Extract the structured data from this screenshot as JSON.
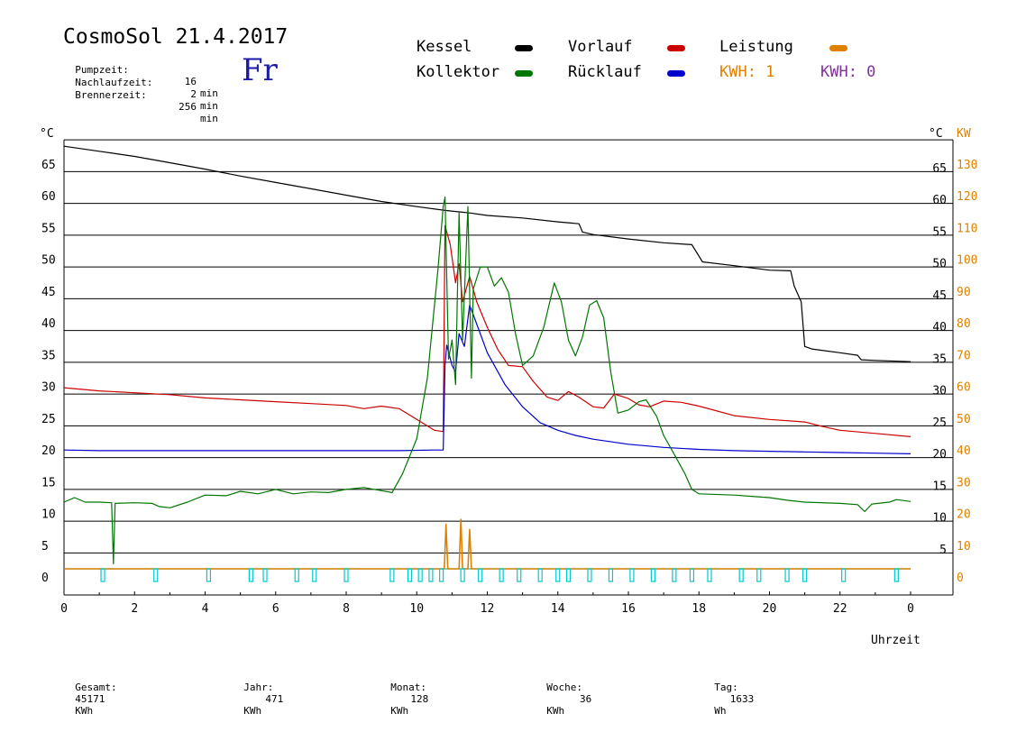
{
  "header": {
    "title": "CosmoSol 21.4.2017",
    "day_label": "Fr",
    "info": [
      {
        "label": "Pumpzeit:",
        "value": "16",
        "unit": "min"
      },
      {
        "label": "Nachlaufzeit:",
        "value": "2",
        "unit": "min"
      },
      {
        "label": "Brennerzeit:",
        "value": "256",
        "unit": "min"
      }
    ]
  },
  "legend": {
    "kessel": "Kessel",
    "vorlauf": "Vorlauf",
    "leistung": "Leistung",
    "kollektor": "Kollektor",
    "ruecklauf": "Rücklauf",
    "kwh1": "KWH: 1",
    "kwh2": "KWH: 0"
  },
  "colors": {
    "kessel": "#000000",
    "vorlauf": "#cc0000",
    "ruecklauf": "#0000cc",
    "kollektor": "#007700",
    "leistung": "#e08000",
    "pump": "#00c8d0",
    "kwh_violet": "#803399",
    "day": "#1a1aa8"
  },
  "footer": [
    {
      "label": "Gesamt:",
      "value": "45171",
      "unit": "KWh"
    },
    {
      "label": "Jahr:",
      "value": "471",
      "unit": "KWh"
    },
    {
      "label": "Monat:",
      "value": "128",
      "unit": "KWh"
    },
    {
      "label": "Woche:",
      "value": "36",
      "unit": "KWh"
    },
    {
      "label": "Tag:",
      "value": "1633",
      "unit": "Wh"
    }
  ],
  "chart_data": {
    "type": "line",
    "xlabel": "Uhrzeit",
    "ylabel_left": "°C",
    "ylabel_right": "°C",
    "ylabel_right2": "KW",
    "xlim": [
      0,
      24
    ],
    "ylim": [
      -2.5,
      66.5
    ],
    "x_ticks": [
      "0",
      "2",
      "4",
      "6",
      "8",
      "10",
      "12",
      "14",
      "16",
      "18",
      "20",
      "22",
      "0"
    ],
    "y_ticks_left": [
      "0",
      "5",
      "10",
      "15",
      "20",
      "25",
      "30",
      "35",
      "40",
      "45",
      "50",
      "55",
      "60",
      "65"
    ],
    "y_ticks_right": [
      "5",
      "10",
      "15",
      "20",
      "25",
      "30",
      "35",
      "40",
      "45",
      "50",
      "55",
      "60",
      "65"
    ],
    "y_ticks_kw": [
      "0",
      "10",
      "20",
      "30",
      "40",
      "50",
      "60",
      "70",
      "80",
      "90",
      "100",
      "110",
      "120",
      "130"
    ],
    "grid": "horizontal",
    "series": [
      {
        "name": "Kessel",
        "key": "kessel",
        "points": [
          [
            0,
            66.5
          ],
          [
            1,
            65.7
          ],
          [
            2,
            64.9
          ],
          [
            3,
            63.9
          ],
          [
            4,
            62.9
          ],
          [
            5,
            61.8
          ],
          [
            6,
            60.8
          ],
          [
            7,
            59.8
          ],
          [
            8,
            58.8
          ],
          [
            9,
            57.8
          ],
          [
            10,
            57.0
          ],
          [
            10.8,
            56.4
          ],
          [
            11.5,
            56.0
          ],
          [
            12,
            55.6
          ],
          [
            13,
            55.2
          ],
          [
            14,
            54.6
          ],
          [
            14.6,
            54.3
          ],
          [
            14.7,
            53.0
          ],
          [
            15,
            52.6
          ],
          [
            16,
            51.9
          ],
          [
            17,
            51.3
          ],
          [
            17.8,
            51.0
          ],
          [
            18.1,
            48.3
          ],
          [
            19,
            47.7
          ],
          [
            20,
            47.0
          ],
          [
            20.6,
            46.9
          ],
          [
            20.7,
            44.5
          ],
          [
            20.9,
            42.0
          ],
          [
            21.0,
            35.0
          ],
          [
            21.2,
            34.6
          ],
          [
            22,
            34.0
          ],
          [
            22.5,
            33.6
          ],
          [
            22.6,
            32.9
          ],
          [
            23,
            32.8
          ],
          [
            24,
            32.6
          ]
        ]
      },
      {
        "name": "Vorlauf",
        "key": "vorlauf",
        "points": [
          [
            0,
            28.5
          ],
          [
            1,
            28.0
          ],
          [
            2,
            27.7
          ],
          [
            3,
            27.4
          ],
          [
            4,
            26.9
          ],
          [
            5,
            26.6
          ],
          [
            6,
            26.3
          ],
          [
            7,
            26.0
          ],
          [
            8,
            25.7
          ],
          [
            8.5,
            25.2
          ],
          [
            9,
            25.6
          ],
          [
            9.5,
            25.2
          ],
          [
            10,
            23.5
          ],
          [
            10.5,
            21.8
          ],
          [
            10.75,
            21.6
          ],
          [
            10.8,
            54.0
          ],
          [
            10.95,
            51.0
          ],
          [
            11.1,
            45.0
          ],
          [
            11.2,
            48.0
          ],
          [
            11.3,
            42.0
          ],
          [
            11.5,
            46.0
          ],
          [
            11.7,
            42.0
          ],
          [
            12,
            38.0
          ],
          [
            12.3,
            34.5
          ],
          [
            12.6,
            32.0
          ],
          [
            13,
            31.8
          ],
          [
            13.3,
            29.5
          ],
          [
            13.7,
            27.0
          ],
          [
            14,
            26.5
          ],
          [
            14.3,
            27.9
          ],
          [
            14.6,
            27.0
          ],
          [
            15,
            25.5
          ],
          [
            15.3,
            25.3
          ],
          [
            15.6,
            27.5
          ],
          [
            16,
            26.8
          ],
          [
            16.3,
            25.8
          ],
          [
            16.6,
            25.5
          ],
          [
            17,
            26.4
          ],
          [
            17.5,
            26.2
          ],
          [
            18,
            25.6
          ],
          [
            19,
            24.1
          ],
          [
            20,
            23.5
          ],
          [
            21,
            23.1
          ],
          [
            21.5,
            22.4
          ],
          [
            22,
            21.8
          ],
          [
            23,
            21.3
          ],
          [
            24,
            20.8
          ]
        ]
      },
      {
        "name": "Rücklauf",
        "key": "ruecklauf",
        "points": [
          [
            0,
            18.7
          ],
          [
            1,
            18.6
          ],
          [
            2,
            18.6
          ],
          [
            4,
            18.6
          ],
          [
            6,
            18.6
          ],
          [
            8,
            18.6
          ],
          [
            9.5,
            18.6
          ],
          [
            10.5,
            18.7
          ],
          [
            10.75,
            18.7
          ],
          [
            10.8,
            32.0
          ],
          [
            10.85,
            35.2
          ],
          [
            11.0,
            32.0
          ],
          [
            11.1,
            31.0
          ],
          [
            11.2,
            37.0
          ],
          [
            11.35,
            35.0
          ],
          [
            11.5,
            41.5
          ],
          [
            11.6,
            40.0
          ],
          [
            12,
            34.0
          ],
          [
            12.5,
            29.0
          ],
          [
            13,
            25.5
          ],
          [
            13.5,
            23.0
          ],
          [
            14,
            21.8
          ],
          [
            14.5,
            21.0
          ],
          [
            15,
            20.4
          ],
          [
            16,
            19.6
          ],
          [
            17,
            19.1
          ],
          [
            18,
            18.8
          ],
          [
            19,
            18.6
          ],
          [
            20,
            18.5
          ],
          [
            21,
            18.4
          ],
          [
            22,
            18.3
          ],
          [
            23,
            18.2
          ],
          [
            24,
            18.1
          ]
        ]
      },
      {
        "name": "Kollektor",
        "key": "kollektor",
        "points": [
          [
            0,
            10.5
          ],
          [
            0.3,
            11.2
          ],
          [
            0.6,
            10.5
          ],
          [
            1,
            10.5
          ],
          [
            1.35,
            10.4
          ],
          [
            1.4,
            0.8
          ],
          [
            1.45,
            10.3
          ],
          [
            2,
            10.4
          ],
          [
            2.5,
            10.3
          ],
          [
            2.7,
            9.8
          ],
          [
            3,
            9.6
          ],
          [
            3.5,
            10.5
          ],
          [
            4,
            11.6
          ],
          [
            4.6,
            11.5
          ],
          [
            5,
            12.2
          ],
          [
            5.5,
            11.8
          ],
          [
            6,
            12.5
          ],
          [
            6.5,
            11.8
          ],
          [
            7,
            12.1
          ],
          [
            7.5,
            12.0
          ],
          [
            8,
            12.5
          ],
          [
            8.5,
            12.8
          ],
          [
            9,
            12.3
          ],
          [
            9.3,
            12.0
          ],
          [
            9.6,
            15.0
          ],
          [
            10,
            20.5
          ],
          [
            10.3,
            30.0
          ],
          [
            10.6,
            47.0
          ],
          [
            10.75,
            57.0
          ],
          [
            10.8,
            58.5
          ],
          [
            10.9,
            33.0
          ],
          [
            11.0,
            36.0
          ],
          [
            11.1,
            29.0
          ],
          [
            11.2,
            56.0
          ],
          [
            11.3,
            36.0
          ],
          [
            11.45,
            57.0
          ],
          [
            11.55,
            30.0
          ],
          [
            11.6,
            44.0
          ],
          [
            11.8,
            47.5
          ],
          [
            12,
            47.5
          ],
          [
            12.2,
            44.5
          ],
          [
            12.4,
            45.8
          ],
          [
            12.6,
            43.5
          ],
          [
            12.8,
            37.0
          ],
          [
            13,
            32.0
          ],
          [
            13.3,
            33.5
          ],
          [
            13.6,
            38.0
          ],
          [
            13.9,
            45.0
          ],
          [
            14.1,
            42.0
          ],
          [
            14.3,
            36.0
          ],
          [
            14.5,
            33.5
          ],
          [
            14.7,
            36.5
          ],
          [
            14.9,
            41.5
          ],
          [
            15.1,
            42.2
          ],
          [
            15.3,
            39.5
          ],
          [
            15.5,
            31.0
          ],
          [
            15.7,
            24.5
          ],
          [
            16,
            25.0
          ],
          [
            16.3,
            26.3
          ],
          [
            16.5,
            26.6
          ],
          [
            16.8,
            24.0
          ],
          [
            17,
            21.0
          ],
          [
            17.3,
            18.0
          ],
          [
            17.6,
            15.0
          ],
          [
            17.8,
            12.5
          ],
          [
            18,
            11.8
          ],
          [
            19,
            11.6
          ],
          [
            19.5,
            11.4
          ],
          [
            20,
            11.2
          ],
          [
            20.5,
            10.8
          ],
          [
            21,
            10.5
          ],
          [
            22,
            10.3
          ],
          [
            22.5,
            10.1
          ],
          [
            22.7,
            9.0
          ],
          [
            22.9,
            10.2
          ],
          [
            23.4,
            10.5
          ],
          [
            23.6,
            10.9
          ],
          [
            24,
            10.6
          ]
        ]
      },
      {
        "name": "Leistung",
        "key": "leistung",
        "points": [
          [
            0,
            0
          ],
          [
            10.7,
            0
          ],
          [
            10.78,
            0
          ],
          [
            10.83,
            7.0
          ],
          [
            10.88,
            0
          ],
          [
            11.2,
            0
          ],
          [
            11.25,
            7.8
          ],
          [
            11.3,
            0
          ],
          [
            11.45,
            0
          ],
          [
            11.5,
            6.2
          ],
          [
            11.55,
            0
          ],
          [
            24,
            0
          ]
        ]
      },
      {
        "name": "Pumpe",
        "key": "pump",
        "points": [
          [
            0,
            0
          ],
          [
            24,
            0
          ]
        ],
        "pulses": [
          1.1,
          2.6,
          4.1,
          5.3,
          5.7,
          6.6,
          7.1,
          8.0,
          9.3,
          9.8,
          10.1,
          10.4,
          10.7,
          11.3,
          11.8,
          12.4,
          12.9,
          13.5,
          14.0,
          14.3,
          14.9,
          15.5,
          16.1,
          16.7,
          17.3,
          17.8,
          18.3,
          19.2,
          19.7,
          20.5,
          21.0,
          22.1,
          23.6
        ]
      }
    ]
  }
}
